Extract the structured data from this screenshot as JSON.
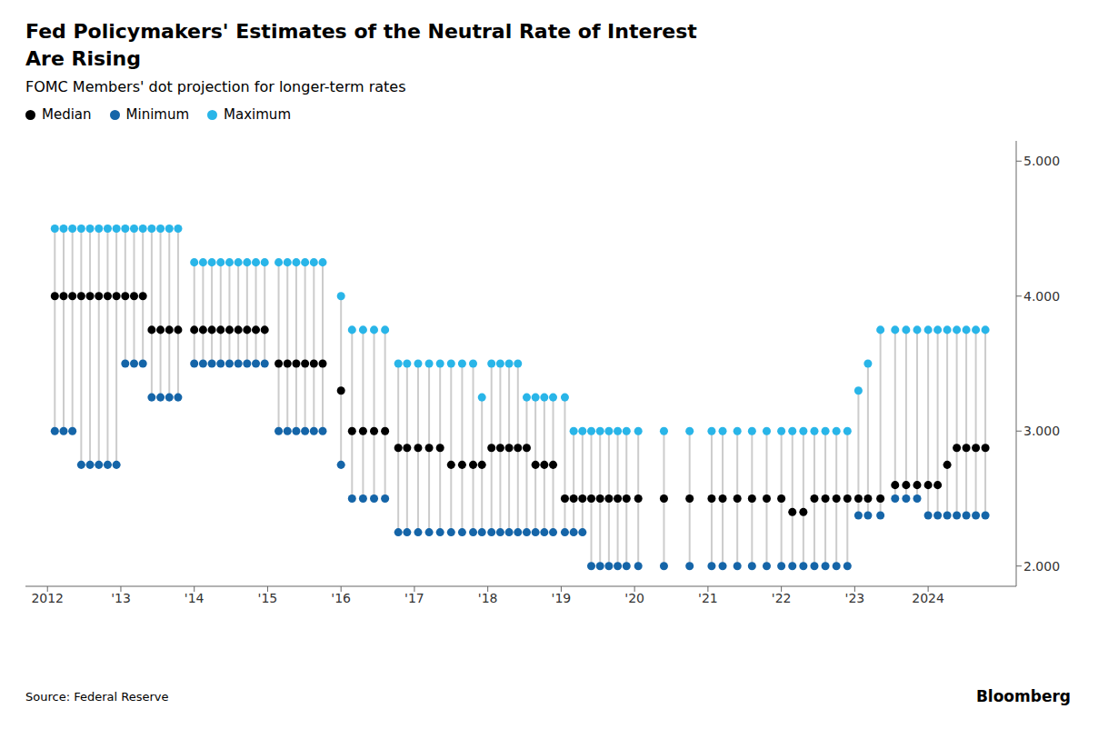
{
  "chart_data": {
    "type": "dot_range",
    "title": "Fed Policymakers' Estimates of the Neutral Rate of Interest\nAre Rising",
    "subtitle": "FOMC Members' dot projection for longer-term rates",
    "annotations": [
      "Source: Federal Reserve",
      "Bloomberg"
    ],
    "legend": "upper left",
    "grid": false,
    "color": "#cccccc",
    "x": [
      2012.1,
      2012.22,
      2012.34,
      2012.46,
      2012.58,
      2012.7,
      2012.82,
      2012.94,
      2013.06,
      2013.18,
      2013.3,
      2013.42,
      2013.54,
      2013.66,
      2013.78,
      2014.0,
      2014.12,
      2014.24,
      2014.36,
      2014.48,
      2014.6,
      2014.72,
      2014.84,
      2014.96,
      2015.15,
      2015.27,
      2015.39,
      2015.51,
      2015.63,
      2015.75,
      2016.0,
      2016.15,
      2016.3,
      2016.45,
      2016.6,
      2016.78,
      2016.9,
      2017.05,
      2017.2,
      2017.35,
      2017.5,
      2017.65,
      2017.8,
      2017.92,
      2018.05,
      2018.17,
      2018.29,
      2018.41,
      2018.53,
      2018.65,
      2018.77,
      2018.89,
      2019.05,
      2019.17,
      2019.29,
      2019.41,
      2019.53,
      2019.65,
      2019.77,
      2019.89,
      2020.05,
      2020.4,
      2020.75,
      2021.05,
      2021.2,
      2021.4,
      2021.6,
      2021.8,
      2022.0,
      2022.15,
      2022.3,
      2022.45,
      2022.6,
      2022.75,
      2022.9,
      2023.05,
      2023.18,
      2023.35,
      2023.55,
      2023.7,
      2023.85,
      2024.0,
      2024.13,
      2024.26,
      2024.39,
      2024.52,
      2024.65,
      2024.78
    ],
    "series": [
      {
        "name": "Median",
        "color": "#000000",
        "values": [
          4.0,
          4.0,
          4.0,
          4.0,
          4.0,
          4.0,
          4.0,
          4.0,
          4.0,
          4.0,
          4.0,
          3.75,
          3.75,
          3.75,
          3.75,
          3.75,
          3.75,
          3.75,
          3.75,
          3.75,
          3.75,
          3.75,
          3.75,
          3.75,
          3.5,
          3.5,
          3.5,
          3.5,
          3.5,
          3.5,
          3.3,
          3.0,
          3.0,
          3.0,
          3.0,
          2.875,
          2.875,
          2.875,
          2.875,
          2.875,
          2.75,
          2.75,
          2.75,
          2.75,
          2.875,
          2.875,
          2.875,
          2.875,
          2.875,
          2.75,
          2.75,
          2.75,
          2.5,
          2.5,
          2.5,
          2.5,
          2.5,
          2.5,
          2.5,
          2.5,
          2.5,
          2.5,
          2.5,
          2.5,
          2.5,
          2.5,
          2.5,
          2.5,
          2.5,
          2.4,
          2.4,
          2.5,
          2.5,
          2.5,
          2.5,
          2.5,
          2.5,
          2.5,
          2.6,
          2.6,
          2.6,
          2.6,
          2.6,
          2.75,
          2.875,
          2.875,
          2.875,
          2.875
        ]
      },
      {
        "name": "Minimum",
        "color": "#1565a8",
        "values": [
          3.0,
          3.0,
          3.0,
          2.75,
          2.75,
          2.75,
          2.75,
          2.75,
          3.5,
          3.5,
          3.5,
          3.25,
          3.25,
          3.25,
          3.25,
          3.5,
          3.5,
          3.5,
          3.5,
          3.5,
          3.5,
          3.5,
          3.5,
          3.5,
          3.0,
          3.0,
          3.0,
          3.0,
          3.0,
          3.0,
          2.75,
          2.5,
          2.5,
          2.5,
          2.5,
          2.25,
          2.25,
          2.25,
          2.25,
          2.25,
          2.25,
          2.25,
          2.25,
          2.25,
          2.25,
          2.25,
          2.25,
          2.25,
          2.25,
          2.25,
          2.25,
          2.25,
          2.25,
          2.25,
          2.25,
          2.0,
          2.0,
          2.0,
          2.0,
          2.0,
          2.0,
          2.0,
          2.0,
          2.0,
          2.0,
          2.0,
          2.0,
          2.0,
          2.0,
          2.0,
          2.0,
          2.0,
          2.0,
          2.0,
          2.0,
          2.375,
          2.375,
          2.375,
          2.5,
          2.5,
          2.5,
          2.375,
          2.375,
          2.375,
          2.375,
          2.375,
          2.375,
          2.375
        ]
      },
      {
        "name": "Maximum",
        "color": "#29b5e8",
        "values": [
          4.5,
          4.5,
          4.5,
          4.5,
          4.5,
          4.5,
          4.5,
          4.5,
          4.5,
          4.5,
          4.5,
          4.5,
          4.5,
          4.5,
          4.5,
          4.25,
          4.25,
          4.25,
          4.25,
          4.25,
          4.25,
          4.25,
          4.25,
          4.25,
          4.25,
          4.25,
          4.25,
          4.25,
          4.25,
          4.25,
          4.0,
          3.75,
          3.75,
          3.75,
          3.75,
          3.5,
          3.5,
          3.5,
          3.5,
          3.5,
          3.5,
          3.5,
          3.5,
          3.25,
          3.5,
          3.5,
          3.5,
          3.5,
          3.25,
          3.25,
          3.25,
          3.25,
          3.25,
          3.0,
          3.0,
          3.0,
          3.0,
          3.0,
          3.0,
          3.0,
          3.0,
          3.0,
          3.0,
          3.0,
          3.0,
          3.0,
          3.0,
          3.0,
          3.0,
          3.0,
          3.0,
          3.0,
          3.0,
          3.0,
          3.0,
          3.3,
          3.5,
          3.75,
          3.75,
          3.75,
          3.75,
          3.75,
          3.75,
          3.75,
          3.75,
          3.75,
          3.75,
          3.75
        ]
      }
    ],
    "xlim": [
      2011.7,
      2025.2
    ],
    "xticks": [
      2012,
      {
        "value": 2013,
        "label": "'13"
      },
      {
        "value": 2014,
        "label": "'14"
      },
      {
        "value": 2015,
        "label": "'15"
      },
      {
        "value": 2016,
        "label": "'16"
      },
      {
        "value": 2017,
        "label": "'17"
      },
      {
        "value": 2018,
        "label": "'18"
      },
      {
        "value": 2019,
        "label": "'19"
      },
      {
        "value": 2020,
        "label": "'20"
      },
      {
        "value": 2021,
        "label": "'21"
      },
      {
        "value": 2022,
        "label": "'22"
      },
      {
        "value": 2023,
        "label": "'23"
      },
      2024
    ],
    "ylim": [
      1.85,
      5.15
    ],
    "yticks": [
      {
        "value": 2.0,
        "label": "2.000"
      },
      {
        "value": 3.0,
        "label": "3.000"
      },
      {
        "value": 4.0,
        "label": "4.000"
      },
      {
        "value": 5.0,
        "label": "5.000"
      }
    ]
  }
}
